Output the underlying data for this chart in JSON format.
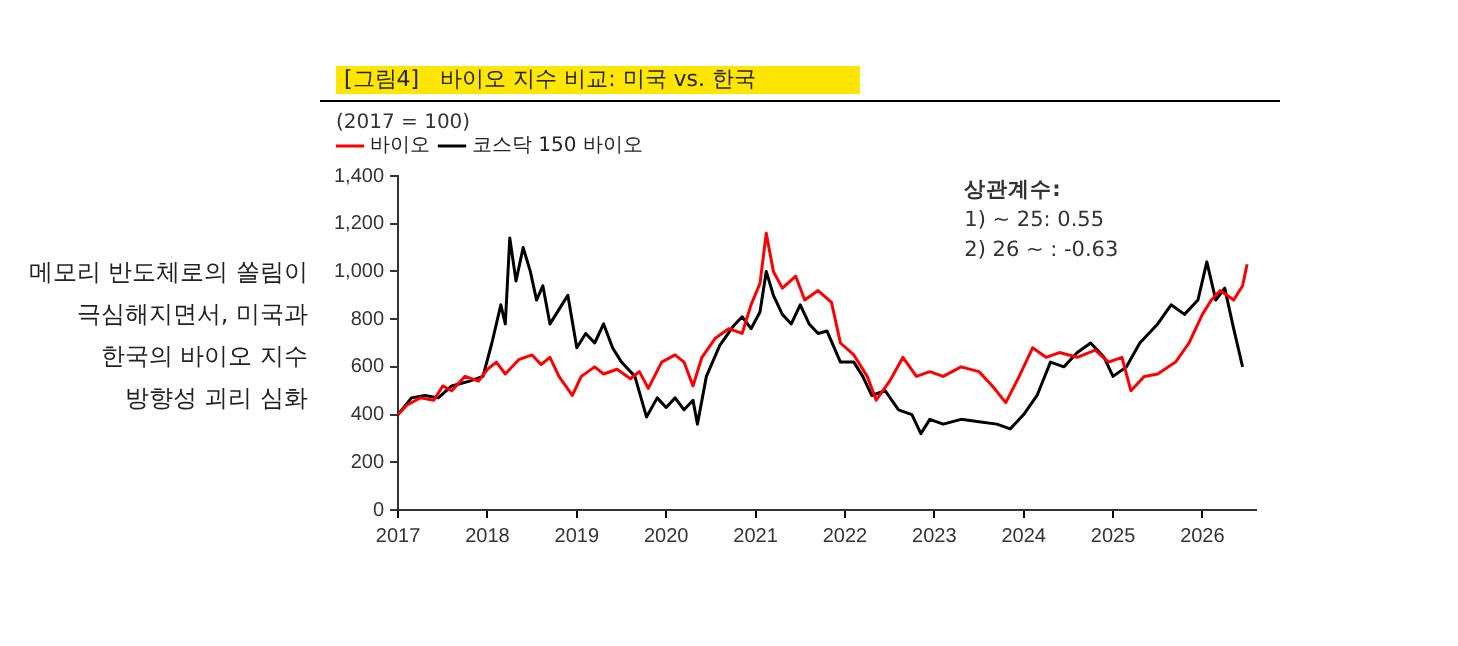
{
  "chart_data": {
    "type": "line",
    "title": "[그림4]   바이오 지수 비교: 미국 vs. 한국",
    "ylabel": "(2017 = 100)",
    "annotations": [
      "메모리 반도체로의 쏠림이 극심해지면서, 미국과 한국의 바이오 지수 방향성 괴리 심화",
      "상관계수:",
      "1) ~ 25: 0.55",
      "2) 26 ~ : -0.63"
    ],
    "xlim": [
      2017,
      2026.6
    ],
    "xticks": [
      2017,
      2018,
      2019,
      2020,
      2021,
      2022,
      2023,
      2024,
      2025,
      2026
    ],
    "ylim": [
      0,
      1400
    ],
    "yticks": [
      0,
      200,
      400,
      600,
      800,
      {
        "value": 1000,
        "label": "1,000"
      },
      {
        "value": 1200,
        "label": "1,200"
      },
      {
        "value": 1400,
        "label": "1,400"
      }
    ],
    "grid": false,
    "legend": "top left",
    "marker": "none",
    "line_style": "solid",
    "series": [
      {
        "name": "바이오",
        "color": "#ff0000",
        "x": [
          2017.0,
          2017.1,
          2017.25,
          2017.4,
          2017.5,
          2017.6,
          2017.75,
          2017.9,
          2018.0,
          2018.1,
          2018.2,
          2018.35,
          2018.5,
          2018.6,
          2018.7,
          2018.8,
          2018.95,
          2019.05,
          2019.2,
          2019.3,
          2019.45,
          2019.6,
          2019.7,
          2019.8,
          2019.95,
          2020.1,
          2020.2,
          2020.3,
          2020.4,
          2020.55,
          2020.7,
          2020.85,
          2020.95,
          2021.05,
          2021.12,
          2021.2,
          2021.3,
          2021.45,
          2021.55,
          2021.7,
          2021.85,
          2021.95,
          2022.1,
          2022.25,
          2022.35,
          2022.5,
          2022.65,
          2022.8,
          2022.95,
          2023.1,
          2023.3,
          2023.5,
          2023.65,
          2023.8,
          2023.95,
          2024.1,
          2024.25,
          2024.4,
          2024.6,
          2024.8,
          2024.95,
          2025.1,
          2025.2,
          2025.35,
          2025.5,
          2025.7,
          2025.85,
          2026.0,
          2026.1,
          2026.2,
          2026.35,
          2026.45,
          2026.5
        ],
        "values": [
          400,
          440,
          470,
          460,
          520,
          500,
          560,
          540,
          590,
          620,
          570,
          630,
          650,
          610,
          640,
          560,
          480,
          560,
          600,
          570,
          590,
          550,
          580,
          510,
          620,
          650,
          620,
          520,
          640,
          720,
          760,
          740,
          860,
          950,
          1160,
          1000,
          930,
          980,
          880,
          920,
          870,
          700,
          650,
          560,
          460,
          540,
          640,
          560,
          580,
          560,
          600,
          580,
          520,
          450,
          560,
          680,
          640,
          660,
          640,
          670,
          620,
          640,
          500,
          560,
          570,
          620,
          700,
          820,
          880,
          920,
          880,
          940,
          1030
        ]
      },
      {
        "name": "코스닥 150 바이오",
        "color": "#000000",
        "x": [
          2017.0,
          2017.15,
          2017.3,
          2017.45,
          2017.6,
          2017.8,
          2017.95,
          2018.05,
          2018.15,
          2018.2,
          2018.25,
          2018.32,
          2018.4,
          2018.48,
          2018.55,
          2018.62,
          2018.7,
          2018.8,
          2018.9,
          2019.0,
          2019.1,
          2019.2,
          2019.3,
          2019.4,
          2019.5,
          2019.65,
          2019.78,
          2019.9,
          2020.0,
          2020.1,
          2020.2,
          2020.3,
          2020.35,
          2020.45,
          2020.6,
          2020.75,
          2020.85,
          2020.95,
          2021.05,
          2021.12,
          2021.2,
          2021.3,
          2021.4,
          2021.5,
          2021.6,
          2021.7,
          2021.8,
          2021.95,
          2022.1,
          2022.2,
          2022.3,
          2022.45,
          2022.6,
          2022.75,
          2022.85,
          2022.95,
          2023.1,
          2023.3,
          2023.5,
          2023.7,
          2023.85,
          2024.0,
          2024.15,
          2024.3,
          2024.45,
          2024.6,
          2024.75,
          2024.9,
          2025.0,
          2025.15,
          2025.3,
          2025.5,
          2025.65,
          2025.8,
          2025.95,
          2026.05,
          2026.15,
          2026.25,
          2026.35,
          2026.45
        ],
        "values": [
          400,
          470,
          480,
          470,
          520,
          540,
          560,
          700,
          860,
          780,
          1140,
          960,
          1100,
          1000,
          880,
          940,
          780,
          840,
          900,
          680,
          740,
          700,
          780,
          680,
          620,
          560,
          390,
          470,
          430,
          470,
          420,
          460,
          360,
          560,
          690,
          770,
          810,
          760,
          830,
          1000,
          900,
          820,
          780,
          860,
          780,
          740,
          750,
          620,
          620,
          560,
          480,
          500,
          420,
          400,
          320,
          380,
          360,
          380,
          370,
          360,
          340,
          400,
          480,
          620,
          600,
          660,
          700,
          640,
          560,
          600,
          700,
          780,
          860,
          820,
          880,
          1040,
          880,
          930,
          760,
          600
        ]
      }
    ]
  }
}
